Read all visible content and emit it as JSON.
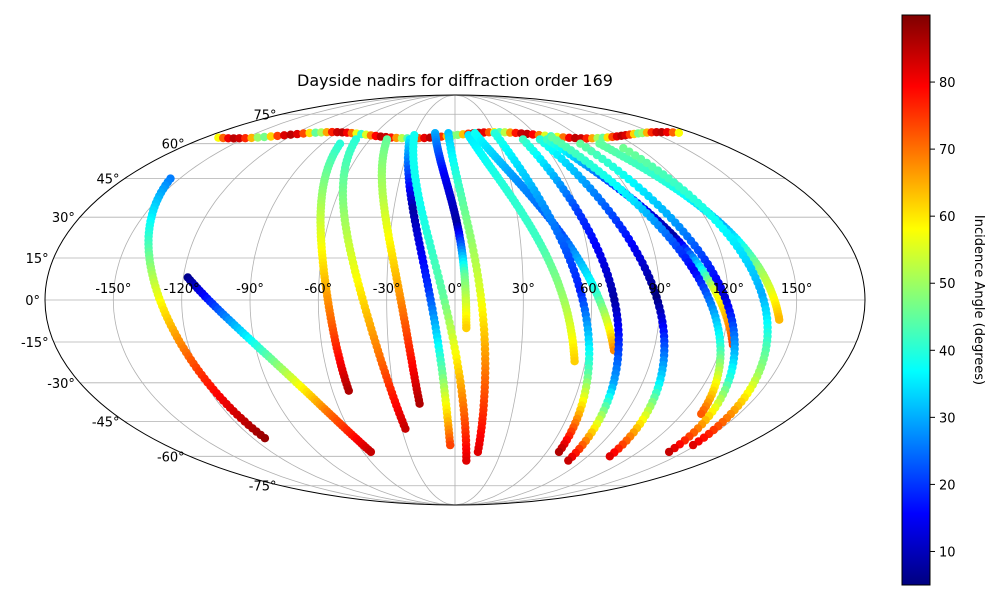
{
  "chart_data": {
    "type": "scatter",
    "projection": "mollweide",
    "title": "Dayside nadirs for diffraction order 169",
    "grid": true,
    "lon_tick_labels": [
      "-150°",
      "-120°",
      "-90°",
      "-60°",
      "-30°",
      "0°",
      "30°",
      "60°",
      "90°",
      "120°",
      "150°"
    ],
    "lat_tick_labels": [
      "75°",
      "60°",
      "45°",
      "30°",
      "15°",
      "0°",
      "-15°",
      "-30°",
      "-45°",
      "-60°",
      "-75°"
    ],
    "colorbar": {
      "label": "Incidence Angle (degrees)",
      "colormap": "jet",
      "range": [
        5,
        90
      ],
      "tick_labels": [
        "10",
        "20",
        "30",
        "40",
        "50",
        "60",
        "70",
        "80"
      ]
    },
    "tracks": [
      {
        "lon_range": [
          -155,
          -113
        ],
        "lat_range": [
          45,
          -52
        ],
        "inc": [
          26,
          42,
          60,
          76,
          88
        ]
      },
      {
        "lon_range": [
          -118,
          -55
        ],
        "lat_range": [
          8,
          -58
        ],
        "inc": [
          6,
          30,
          50,
          70,
          84
        ]
      },
      {
        "lon_range": [
          -78,
          -52
        ],
        "lat_range": [
          60,
          -33
        ],
        "inc": [
          40,
          50,
          60,
          72,
          86
        ]
      },
      {
        "lon_range": [
          -70,
          -28
        ],
        "lat_range": [
          62,
          -48
        ],
        "inc": [
          40,
          48,
          58,
          70,
          84
        ]
      },
      {
        "lon_range": [
          -48,
          -18
        ],
        "lat_range": [
          62,
          -38
        ],
        "inc": [
          45,
          52,
          62,
          74,
          86
        ]
      },
      {
        "lon_range": [
          -32,
          -3
        ],
        "lat_range": [
          62,
          -55
        ],
        "inc": [
          35,
          8,
          20,
          45,
          74
        ]
      },
      {
        "lon_range": [
          -30,
          8
        ],
        "lat_range": [
          64,
          -62
        ],
        "inc": [
          38,
          38,
          45,
          65,
          82
        ]
      },
      {
        "lon_range": [
          -15,
          5
        ],
        "lat_range": [
          65,
          -10
        ],
        "inc": [
          30,
          15,
          8,
          45,
          62
        ]
      },
      {
        "lon_range": [
          -5,
          15
        ],
        "lat_range": [
          65,
          -58
        ],
        "inc": [
          32,
          45,
          55,
          70,
          82
        ]
      },
      {
        "lon_range": [
          10,
          55
        ],
        "lat_range": [
          64,
          -22
        ],
        "inc": [
          35,
          40,
          42,
          50,
          62
        ]
      },
      {
        "lon_range": [
          15,
          72
        ],
        "lat_range": [
          65,
          -18
        ],
        "inc": [
          38,
          28,
          22,
          40,
          68
        ]
      },
      {
        "lon_range": [
          30,
          68
        ],
        "lat_range": [
          65,
          -58
        ],
        "inc": [
          40,
          28,
          18,
          45,
          86
        ]
      },
      {
        "lon_range": [
          48,
          80
        ],
        "lat_range": [
          62,
          -62
        ],
        "inc": [
          42,
          20,
          8,
          30,
          84
        ]
      },
      {
        "lon_range": [
          60,
          105
        ],
        "lat_range": [
          62,
          -60
        ],
        "inc": [
          40,
          22,
          5,
          35,
          82
        ]
      },
      {
        "lon_range": [
          65,
          125
        ],
        "lat_range": [
          62,
          -16
        ],
        "inc": [
          42,
          20,
          8,
          55,
          74
        ]
      },
      {
        "lon_range": [
          70,
          130
        ],
        "lat_range": [
          63,
          -42
        ],
        "inc": [
          45,
          35,
          15,
          40,
          72
        ]
      },
      {
        "lon_range": [
          85,
          140
        ],
        "lat_range": [
          60,
          -58
        ],
        "inc": [
          45,
          30,
          12,
          40,
          84
        ]
      },
      {
        "lon_range": [
          98,
          143
        ],
        "lat_range": [
          60,
          -7
        ],
        "inc": [
          45,
          40,
          30,
          50,
          64
        ]
      },
      {
        "lon_range": [
          110,
          148
        ],
        "lat_range": [
          58,
          -55
        ],
        "inc": [
          46,
          38,
          30,
          50,
          82
        ]
      }
    ],
    "top_band": {
      "lon_range": [
        -170,
        170
      ],
      "lat": 64,
      "inc_range": [
        40,
        85
      ]
    }
  }
}
